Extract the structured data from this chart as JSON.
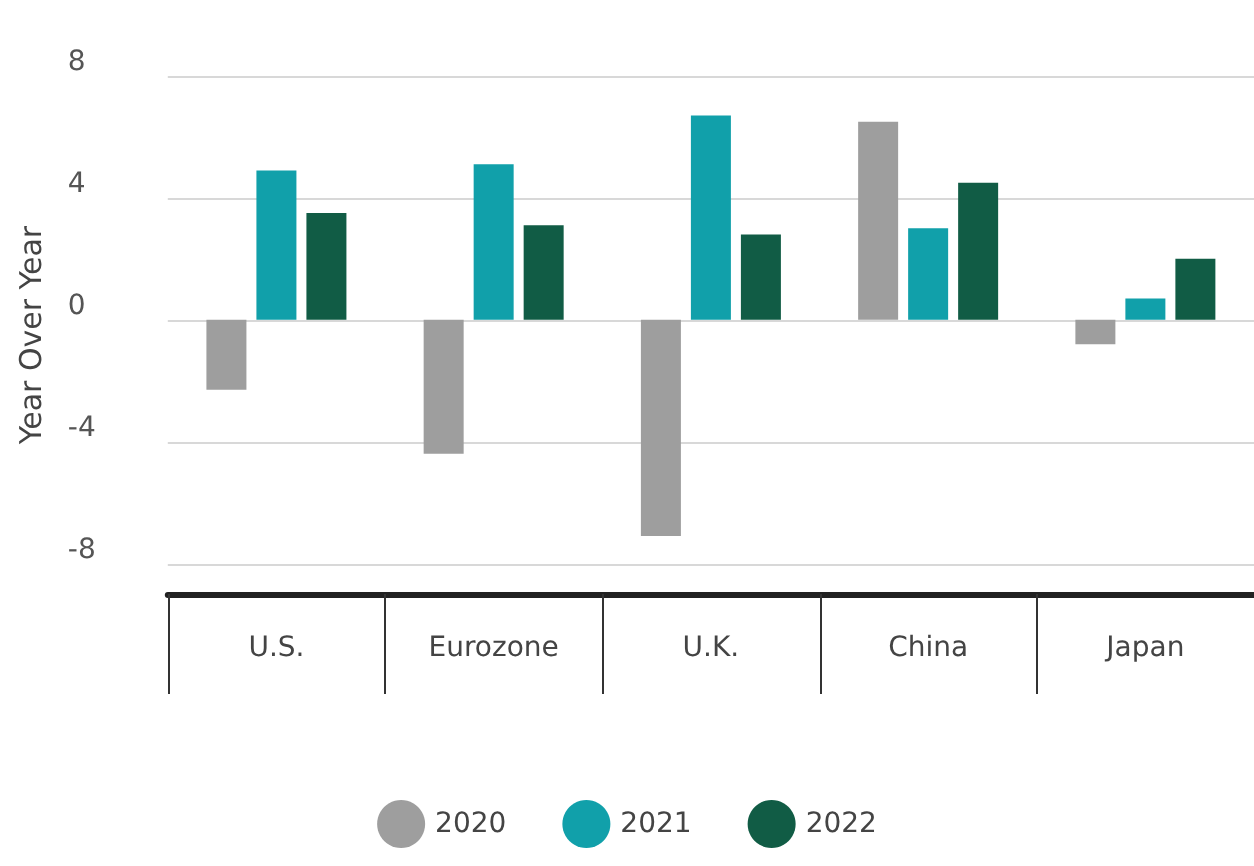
{
  "chart_data": {
    "type": "bar",
    "ylabel": "Year Over Year",
    "categories": [
      "U.S.",
      "Eurozone",
      "U.K.",
      "China",
      "Japan"
    ],
    "series": [
      {
        "name": "2020",
        "color": "#9e9e9e",
        "values": [
          -2.3,
          -4.4,
          -7.1,
          6.5,
          -0.8
        ]
      },
      {
        "name": "2021",
        "color": "#11a0aa",
        "values": [
          4.9,
          5.1,
          6.7,
          3.0,
          0.7
        ]
      },
      {
        "name": "2022",
        "color": "#115c45",
        "values": [
          3.5,
          3.1,
          2.8,
          4.5,
          2.0
        ]
      }
    ],
    "ylim": [
      -9,
      8
    ],
    "yticks": [
      -8,
      -4,
      0,
      4,
      8
    ],
    "grid": "y",
    "legend": "bottom"
  }
}
